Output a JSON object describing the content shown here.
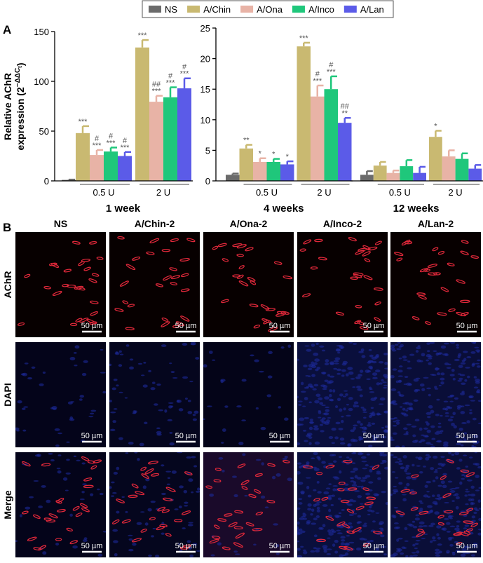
{
  "panel_labels": [
    "A",
    "B"
  ],
  "legend": [
    {
      "name": "NS",
      "color": "#6b6b6b"
    },
    {
      "name": "A/Chin",
      "color": "#c9b971"
    },
    {
      "name": "A/Ona",
      "color": "#e8b3a6"
    },
    {
      "name": "A/Inco",
      "color": "#1fc77b"
    },
    {
      "name": "A/Lan",
      "color": "#5b5be8"
    }
  ],
  "ylabel": {
    "line1": "Relative AChR",
    "line2": "expression (2",
    "sup": "−ΔΔC",
    "sub": "t",
    "end": ")"
  },
  "chart_data": [
    {
      "type": "bar",
      "title": "1 week",
      "categories": [
        null,
        "0.5 U",
        "2 U"
      ],
      "ylim": [
        0,
        150
      ],
      "yticks": [
        0,
        50,
        100,
        150
      ],
      "series": [
        {
          "values": [
            1,
            null,
            null
          ],
          "errors": [
            0.3,
            null,
            null
          ],
          "significance": [
            null,
            null,
            null
          ]
        },
        {
          "values": [
            null,
            48,
            134
          ],
          "errors": [
            null,
            7,
            7.5
          ],
          "significance": [
            null,
            [
              "***"
            ],
            [
              "***"
            ]
          ]
        },
        {
          "values": [
            null,
            26,
            79.5
          ],
          "errors": [
            null,
            5,
            6
          ],
          "significance": [
            null,
            [
              "#",
              "***"
            ],
            [
              "##",
              "***"
            ]
          ]
        },
        {
          "values": [
            null,
            29.5,
            84
          ],
          "errors": [
            null,
            4,
            10
          ],
          "significance": [
            null,
            [
              "#",
              "***"
            ],
            [
              "#",
              "***"
            ]
          ]
        },
        {
          "values": [
            null,
            25,
            93
          ],
          "errors": [
            null,
            4,
            10
          ],
          "significance": [
            null,
            [
              "#",
              "***"
            ],
            [
              "#",
              "***"
            ]
          ]
        }
      ]
    },
    {
      "type": "bar",
      "title": "4 weeks",
      "categories": [
        null,
        "0.5 U",
        "2 U"
      ],
      "ylim": [
        0,
        25
      ],
      "yticks": [
        0,
        5,
        10,
        15,
        20,
        25
      ],
      "series": [
        {
          "values": [
            1.0,
            null,
            null
          ],
          "errors": [
            0.2,
            null,
            null
          ],
          "significance": [
            null,
            null,
            null
          ]
        },
        {
          "values": [
            null,
            5.3,
            22
          ],
          "errors": [
            null,
            0.6,
            0.6
          ],
          "significance": [
            null,
            [
              "**"
            ],
            [
              "***"
            ]
          ]
        },
        {
          "values": [
            null,
            3.1,
            13.8
          ],
          "errors": [
            null,
            0.6,
            1.8
          ],
          "significance": [
            null,
            [
              "*"
            ],
            [
              "#",
              "***"
            ]
          ]
        },
        {
          "values": [
            null,
            3.1,
            15
          ],
          "errors": [
            null,
            0.5,
            2.1
          ],
          "significance": [
            null,
            [
              "*"
            ],
            [
              "#",
              "***"
            ]
          ]
        },
        {
          "values": [
            null,
            2.7,
            9.5
          ],
          "errors": [
            null,
            0.5,
            0.8
          ],
          "significance": [
            null,
            [
              "*"
            ],
            [
              "##",
              "**"
            ]
          ]
        }
      ]
    },
    {
      "type": "bar",
      "title": "12 weeks",
      "categories": [
        null,
        "0.5 U",
        "2 U"
      ],
      "ylim": [
        0,
        25
      ],
      "series": [
        {
          "values": [
            1.0,
            null,
            null
          ],
          "errors": [
            0.6,
            null,
            null
          ],
          "significance": [
            null,
            null,
            null
          ]
        },
        {
          "values": [
            null,
            2.5,
            7.2
          ],
          "errors": [
            null,
            0.6,
            1.0
          ],
          "significance": [
            null,
            null,
            [
              "*"
            ]
          ]
        },
        {
          "values": [
            null,
            1.3,
            4.0
          ],
          "errors": [
            null,
            0.4,
            1.0
          ],
          "significance": [
            null,
            null,
            null
          ]
        },
        {
          "values": [
            null,
            2.4,
            3.6
          ],
          "errors": [
            null,
            1.0,
            0.9
          ],
          "significance": [
            null,
            null,
            null
          ]
        },
        {
          "values": [
            null,
            1.3,
            2.0
          ],
          "errors": [
            null,
            1.0,
            0.6
          ],
          "significance": [
            null,
            null,
            null
          ]
        }
      ]
    }
  ],
  "images": {
    "columns": [
      "NS",
      "A/Chin-2",
      "A/Ona-2",
      "A/Inco-2",
      "A/Lan-2"
    ],
    "rows": [
      "AChR",
      "DAPI",
      "Merge"
    ],
    "scale_bar": "50 µm"
  }
}
